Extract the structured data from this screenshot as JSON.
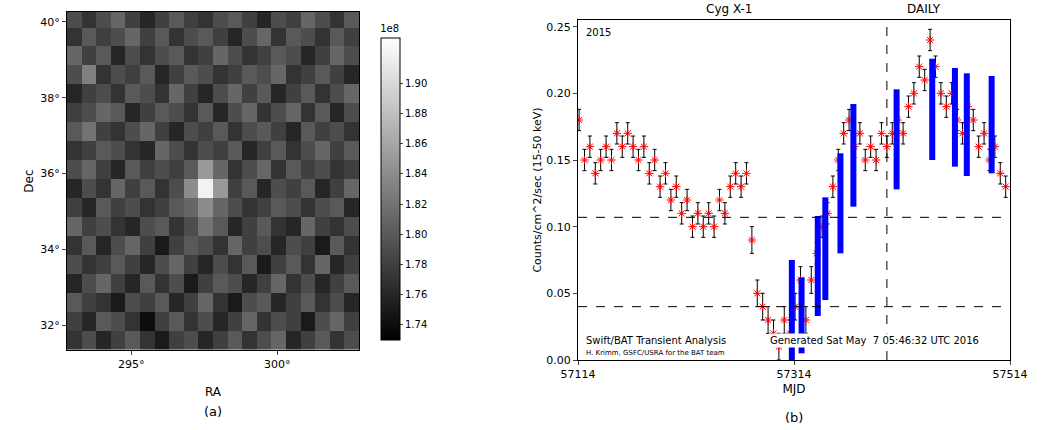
{
  "chart_data": [
    {
      "type": "heatmap",
      "caption": "(a)",
      "x_label": "RA",
      "y_label": "Dec",
      "color": "gray",
      "x": [
        293.05,
        293.55,
        294.05,
        294.55,
        295.05,
        295.55,
        296.05,
        296.55,
        297.05,
        297.55,
        298.05,
        298.55,
        299.05,
        299.55,
        300.05,
        300.55,
        301.05,
        301.55,
        302.05,
        302.55
      ],
      "y": [
        31.6,
        32.1,
        32.6,
        33.1,
        33.6,
        34.1,
        34.6,
        35.1,
        35.6,
        36.1,
        36.6,
        37.1,
        37.6,
        38.1,
        38.6,
        39.1,
        39.6,
        40.1
      ],
      "z": [
        [
          1.77,
          1.79,
          1.76,
          1.78,
          1.8,
          1.77,
          1.75,
          1.78,
          1.79,
          1.76,
          1.78,
          1.8,
          1.77,
          1.79,
          1.81,
          1.76,
          1.78,
          1.8,
          1.77,
          1.79
        ],
        [
          1.78,
          1.76,
          1.8,
          1.79,
          1.77,
          1.74,
          1.78,
          1.8,
          1.77,
          1.79,
          1.76,
          1.78,
          1.81,
          1.77,
          1.79,
          1.78,
          1.75,
          1.79,
          1.81,
          1.78
        ],
        [
          1.8,
          1.78,
          1.77,
          1.75,
          1.79,
          1.78,
          1.8,
          1.76,
          1.78,
          1.81,
          1.77,
          1.75,
          1.79,
          1.8,
          1.76,
          1.78,
          1.8,
          1.77,
          1.79,
          1.76
        ],
        [
          1.76,
          1.79,
          1.81,
          1.78,
          1.76,
          1.8,
          1.77,
          1.79,
          1.75,
          1.78,
          1.8,
          1.79,
          1.76,
          1.78,
          1.81,
          1.77,
          1.79,
          1.76,
          1.78,
          1.8
        ],
        [
          1.79,
          1.77,
          1.78,
          1.8,
          1.78,
          1.76,
          1.79,
          1.81,
          1.78,
          1.76,
          1.79,
          1.77,
          1.8,
          1.75,
          1.78,
          1.8,
          1.77,
          1.81,
          1.76,
          1.78
        ],
        [
          1.77,
          1.8,
          1.76,
          1.79,
          1.81,
          1.78,
          1.75,
          1.78,
          1.8,
          1.79,
          1.77,
          1.81,
          1.78,
          1.79,
          1.76,
          1.79,
          1.78,
          1.75,
          1.8,
          1.77
        ],
        [
          1.81,
          1.78,
          1.79,
          1.77,
          1.76,
          1.79,
          1.8,
          1.77,
          1.79,
          1.82,
          1.8,
          1.76,
          1.78,
          1.8,
          1.77,
          1.76,
          1.81,
          1.78,
          1.77,
          1.79
        ],
        [
          1.78,
          1.76,
          1.8,
          1.78,
          1.79,
          1.77,
          1.78,
          1.8,
          1.81,
          1.84,
          1.81,
          1.79,
          1.77,
          1.78,
          1.8,
          1.79,
          1.77,
          1.79,
          1.8,
          1.76
        ],
        [
          1.76,
          1.79,
          1.77,
          1.81,
          1.78,
          1.8,
          1.77,
          1.79,
          1.84,
          1.92,
          1.85,
          1.78,
          1.8,
          1.76,
          1.79,
          1.78,
          1.8,
          1.76,
          1.78,
          1.81
        ],
        [
          1.79,
          1.81,
          1.78,
          1.76,
          1.8,
          1.78,
          1.79,
          1.78,
          1.8,
          1.85,
          1.81,
          1.77,
          1.79,
          1.81,
          1.77,
          1.8,
          1.78,
          1.79,
          1.77,
          1.78
        ],
        [
          1.77,
          1.78,
          1.8,
          1.79,
          1.77,
          1.76,
          1.81,
          1.79,
          1.77,
          1.79,
          1.78,
          1.8,
          1.76,
          1.78,
          1.8,
          1.77,
          1.79,
          1.81,
          1.78,
          1.8
        ],
        [
          1.8,
          1.82,
          1.78,
          1.77,
          1.79,
          1.81,
          1.78,
          1.76,
          1.79,
          1.78,
          1.8,
          1.77,
          1.79,
          1.8,
          1.78,
          1.76,
          1.8,
          1.78,
          1.79,
          1.77
        ],
        [
          1.78,
          1.79,
          1.81,
          1.8,
          1.76,
          1.78,
          1.8,
          1.79,
          1.77,
          1.8,
          1.76,
          1.79,
          1.81,
          1.77,
          1.79,
          1.81,
          1.77,
          1.8,
          1.76,
          1.79
        ],
        [
          1.76,
          1.78,
          1.79,
          1.77,
          1.8,
          1.79,
          1.77,
          1.81,
          1.78,
          1.76,
          1.79,
          1.81,
          1.78,
          1.8,
          1.76,
          1.78,
          1.8,
          1.77,
          1.79,
          1.81
        ],
        [
          1.79,
          1.83,
          1.77,
          1.79,
          1.78,
          1.8,
          1.76,
          1.78,
          1.8,
          1.79,
          1.77,
          1.78,
          1.8,
          1.79,
          1.81,
          1.77,
          1.78,
          1.8,
          1.78,
          1.76
        ],
        [
          1.81,
          1.78,
          1.8,
          1.76,
          1.79,
          1.77,
          1.79,
          1.8,
          1.77,
          1.78,
          1.81,
          1.79,
          1.77,
          1.78,
          1.8,
          1.79,
          1.76,
          1.78,
          1.81,
          1.79
        ],
        [
          1.77,
          1.8,
          1.78,
          1.79,
          1.81,
          1.78,
          1.8,
          1.77,
          1.79,
          1.8,
          1.78,
          1.76,
          1.79,
          1.81,
          1.77,
          1.8,
          1.79,
          1.77,
          1.8,
          1.78
        ],
        [
          1.79,
          1.77,
          1.79,
          1.81,
          1.78,
          1.76,
          1.78,
          1.8,
          1.78,
          1.77,
          1.79,
          1.8,
          1.78,
          1.76,
          1.79,
          1.78,
          1.81,
          1.79,
          1.77,
          1.8
        ]
      ],
      "xlim": [
        292.8,
        302.8
      ],
      "ylim": [
        31.35,
        40.26
      ],
      "xticks": [
        {
          "value": 295,
          "label": "295°"
        },
        {
          "value": 300,
          "label": "300°"
        }
      ],
      "yticks": [
        {
          "value": 32,
          "label": "32°"
        },
        {
          "value": 34,
          "label": "34°"
        },
        {
          "value": 36,
          "label": "36°"
        },
        {
          "value": 38,
          "label": "38°"
        },
        {
          "value": 40,
          "label": "40°"
        }
      ],
      "zlim": [
        1.73,
        1.93
      ],
      "zticks": [
        1.74,
        1.76,
        1.78,
        {
          "value": 1.8,
          "label": "1.80"
        },
        1.82,
        1.84,
        1.86,
        1.88,
        {
          "value": 1.9,
          "label": "1.90"
        }
      ],
      "colorbar_label": "1e8",
      "grid": false
    },
    {
      "type": "scatter",
      "caption": "(b)",
      "title": "Cyg X-1",
      "subtitle": "DAILY",
      "x_label": "MJD",
      "y_label": "Counts/cm^2/sec (15-50 keV)",
      "annotations": [
        "2015",
        "Swift/BAT Transient Analysis",
        "Generated Sat May  7 05:46:32 UTC 2016",
        "H. Krimm, GSFC/USRA for the BAT team"
      ],
      "color": "#ff0000",
      "marker": "asterisk",
      "x": [
        57115,
        57120,
        57125,
        57130,
        57135,
        57140,
        57145,
        57150,
        57155,
        57160,
        57165,
        57170,
        57175,
        57180,
        57185,
        57190,
        57195,
        57200,
        57205,
        57210,
        57215,
        57220,
        57225,
        57230,
        57235,
        57240,
        57245,
        57250,
        57255,
        57260,
        57265,
        57270,
        57275,
        57280,
        57285,
        57290,
        57295,
        57300,
        57305,
        57310,
        57315,
        57320,
        57325,
        57330,
        57335,
        57340,
        57345,
        57350,
        57355,
        57360,
        57365,
        57370,
        57375,
        57380,
        57385,
        57390,
        57395,
        57400,
        57405,
        57410,
        57415,
        57420,
        57425,
        57430,
        57435,
        57440,
        57445,
        57450,
        57455,
        57460,
        57465,
        57470,
        57475,
        57480,
        57485,
        57490,
        57495,
        57500,
        57505,
        57510
      ],
      "values": [
        0.18,
        0.15,
        0.16,
        0.14,
        0.15,
        0.16,
        0.15,
        0.17,
        0.16,
        0.17,
        0.16,
        0.15,
        0.16,
        0.14,
        0.15,
        0.13,
        0.14,
        0.12,
        0.13,
        0.11,
        0.12,
        0.1,
        0.11,
        0.1,
        0.11,
        0.1,
        0.12,
        0.11,
        0.13,
        0.14,
        0.13,
        0.14,
        0.09,
        0.05,
        0.04,
        0.03,
        0.02,
        0.01,
        0.03,
        0.02,
        0.04,
        0.06,
        0.03,
        0.06,
        0.08,
        0.1,
        0.11,
        0.13,
        0.15,
        0.17,
        0.18,
        0.16,
        0.17,
        0.15,
        0.16,
        0.15,
        0.17,
        0.16,
        0.17,
        0.18,
        0.17,
        0.19,
        0.2,
        0.22,
        0.21,
        0.24,
        0.22,
        0.2,
        0.19,
        0.2,
        0.18,
        0.17,
        0.19,
        0.18,
        0.16,
        0.17,
        0.15,
        0.16,
        0.14,
        0.13
      ],
      "errors": [
        0.008,
        0.008,
        0.008,
        0.008,
        0.008,
        0.008,
        0.008,
        0.008,
        0.008,
        0.008,
        0.008,
        0.008,
        0.008,
        0.008,
        0.008,
        0.008,
        0.008,
        0.008,
        0.008,
        0.008,
        0.008,
        0.008,
        0.008,
        0.008,
        0.008,
        0.008,
        0.008,
        0.008,
        0.008,
        0.008,
        0.008,
        0.008,
        0.01,
        0.01,
        0.01,
        0.01,
        0.01,
        0.01,
        0.01,
        0.01,
        0.01,
        0.01,
        0.01,
        0.01,
        0.008,
        0.008,
        0.008,
        0.008,
        0.008,
        0.008,
        0.008,
        0.008,
        0.008,
        0.008,
        0.008,
        0.008,
        0.008,
        0.008,
        0.008,
        0.008,
        0.008,
        0.008,
        0.008,
        0.008,
        0.008,
        0.008,
        0.008,
        0.008,
        0.008,
        0.008,
        0.008,
        0.008,
        0.008,
        0.008,
        0.008,
        0.008,
        0.008,
        0.008,
        0.008,
        0.008
      ],
      "intervals": {
        "color": "#0000ff",
        "x": [
          57312,
          57321,
          57336,
          57343,
          57357,
          57369,
          57409,
          57442,
          57463,
          57474,
          57497
        ],
        "low": [
          0.0,
          0.005,
          0.033,
          0.045,
          0.08,
          0.115,
          0.128,
          0.15,
          0.145,
          0.138,
          0.14
        ],
        "high": [
          0.075,
          0.062,
          0.108,
          0.122,
          0.155,
          0.192,
          0.203,
          0.226,
          0.219,
          0.215,
          0.213
        ]
      },
      "reference_lines": {
        "line_style": "dashed",
        "x": [
          57400
        ],
        "y": [
          0.107,
          0.04
        ]
      },
      "xlim": [
        57114,
        57514
      ],
      "ylim": [
        0,
        0.255
      ],
      "xticks": [
        57114,
        57314,
        57514
      ],
      "yticks": [
        {
          "value": 0,
          "label": "0.00"
        },
        0.05,
        {
          "value": 0.1,
          "label": "0.10"
        },
        0.15,
        {
          "value": 0.2,
          "label": "0.20"
        },
        0.25
      ],
      "grid": false
    }
  ]
}
